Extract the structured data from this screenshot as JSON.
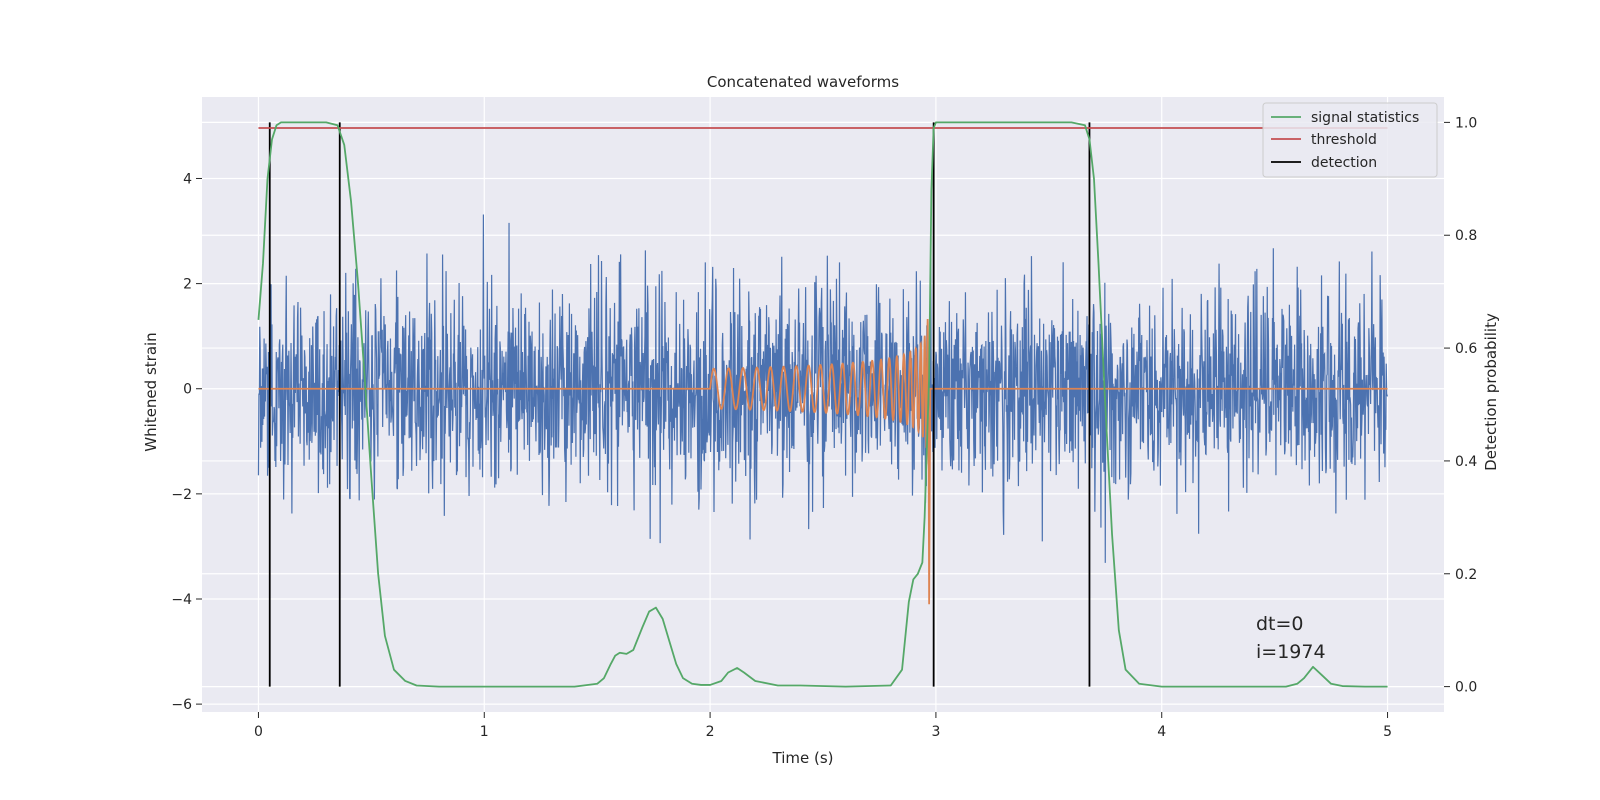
{
  "chart_data": {
    "type": "line",
    "title": "Concatenated waveforms",
    "xlabel": "Time (s)",
    "ylabel": "Whitened strain",
    "ylabel_right": "Detection probability",
    "xlim": [
      -0.25,
      5.25
    ],
    "ylim": [
      -6.15,
      5.55
    ],
    "ylim_right": [
      -0.045,
      1.045
    ],
    "x_ticks": [
      0,
      1,
      2,
      3,
      4,
      5
    ],
    "y_ticks": [
      -6,
      -4,
      -2,
      0,
      2,
      4
    ],
    "y_ticks_right": [
      0.0,
      0.2,
      0.4,
      0.6,
      0.8,
      1.0
    ],
    "x_tick_labels": [
      "0",
      "1",
      "2",
      "3",
      "4",
      "5"
    ],
    "y_tick_labels": [
      "−6",
      "−4",
      "−2",
      "0",
      "2",
      "4"
    ],
    "y_tick_labels_right": [
      "0.0",
      "0.2",
      "0.4",
      "0.6",
      "0.8",
      "1.0"
    ],
    "grid": true,
    "legend_position": "top-right",
    "colors": {
      "strain": "#4c72b0",
      "waveform": "#dd8452",
      "signal_statistics": "#55a868",
      "threshold": "#c44e52",
      "detection": "#000000",
      "plot_background": "#eaeaf2",
      "grid": "#ffffff"
    },
    "strain": {
      "x_range": [
        0,
        5
      ],
      "noise_sigma": 0.95,
      "max_abs": 5.0
    },
    "waveform": {
      "x_start": 2.0,
      "merger_time": 2.97,
      "x_end": 5.0,
      "peak_amplitude": 3.8
    },
    "series": [
      {
        "name": "signal statistics",
        "axis": "right",
        "x": [
          0.0,
          0.02,
          0.04,
          0.06,
          0.08,
          0.1,
          0.15,
          0.2,
          0.25,
          0.3,
          0.35,
          0.38,
          0.41,
          0.44,
          0.47,
          0.5,
          0.53,
          0.56,
          0.6,
          0.65,
          0.7,
          0.8,
          1.0,
          1.2,
          1.4,
          1.5,
          1.53,
          1.56,
          1.58,
          1.6,
          1.63,
          1.66,
          1.7,
          1.73,
          1.76,
          1.79,
          1.82,
          1.85,
          1.88,
          1.92,
          1.96,
          2.0,
          2.05,
          2.08,
          2.12,
          2.15,
          2.2,
          2.3,
          2.4,
          2.6,
          2.8,
          2.85,
          2.88,
          2.9,
          2.92,
          2.94,
          2.95,
          2.97,
          2.98,
          2.99,
          3.0,
          3.05,
          3.2,
          3.4,
          3.6,
          3.66,
          3.68,
          3.7,
          3.72,
          3.75,
          3.78,
          3.81,
          3.84,
          3.9,
          4.0,
          4.2,
          4.4,
          4.55,
          4.6,
          4.63,
          4.67,
          4.71,
          4.75,
          4.8,
          4.9,
          5.0
        ],
        "y": [
          0.65,
          0.75,
          0.9,
          0.97,
          0.995,
          1.0,
          1.0,
          1.0,
          1.0,
          1.0,
          0.995,
          0.96,
          0.86,
          0.72,
          0.55,
          0.37,
          0.2,
          0.09,
          0.03,
          0.01,
          0.002,
          0.0,
          0.0,
          0.0,
          0.0,
          0.005,
          0.015,
          0.04,
          0.055,
          0.06,
          0.058,
          0.065,
          0.105,
          0.133,
          0.14,
          0.12,
          0.08,
          0.04,
          0.015,
          0.005,
          0.003,
          0.003,
          0.01,
          0.025,
          0.033,
          0.025,
          0.01,
          0.002,
          0.002,
          0.0,
          0.002,
          0.03,
          0.15,
          0.19,
          0.2,
          0.22,
          0.3,
          0.55,
          0.88,
          0.99,
          1.0,
          1.0,
          1.0,
          1.0,
          1.0,
          0.995,
          0.97,
          0.9,
          0.75,
          0.5,
          0.27,
          0.1,
          0.03,
          0.005,
          0.0,
          0.0,
          0.0,
          0.0,
          0.005,
          0.015,
          0.035,
          0.02,
          0.005,
          0.001,
          0.0,
          0.0
        ]
      },
      {
        "name": "threshold",
        "axis": "right",
        "x": [
          0,
          5
        ],
        "y": [
          0.99,
          0.99
        ]
      },
      {
        "name": "detection",
        "axis": "right",
        "x": [
          0.05,
          0.36,
          2.99,
          3.68
        ],
        "y_range": [
          0.0,
          1.0
        ]
      }
    ],
    "annotations": [
      "dt=0",
      "i=1974"
    ]
  }
}
